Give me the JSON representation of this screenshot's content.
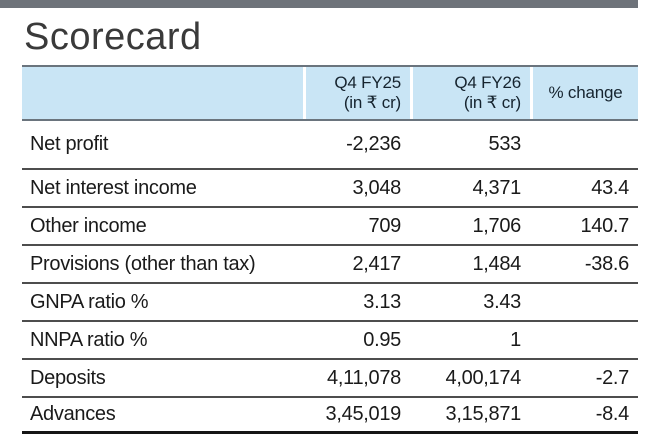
{
  "title": "Scorecard",
  "header": {
    "col_fy25": {
      "line1": "Q4 FY25",
      "line2": "(in ₹ cr)"
    },
    "col_fy26": {
      "line1": "Q4 FY26",
      "line2": "(in ₹ cr)"
    },
    "col_change": {
      "label": "% change"
    }
  },
  "table": {
    "rows": [
      {
        "label": "Net profit",
        "fy25": "-2,236",
        "fy26": "533",
        "change": ""
      },
      {
        "label": "Net interest income",
        "fy25": "3,048",
        "fy26": "4,371",
        "change": "43.4"
      },
      {
        "label": "Other income",
        "fy25": "709",
        "fy26": "1,706",
        "change": "140.7"
      },
      {
        "label": "Provisions (other than tax)",
        "fy25": "2,417",
        "fy26": "1,484",
        "change": "-38.6"
      },
      {
        "label": "GNPA ratio %",
        "fy25": "3.13",
        "fy26": "3.43",
        "change": ""
      },
      {
        "label": "NNPA ratio %",
        "fy25": "0.95",
        "fy26": "1",
        "change": ""
      },
      {
        "label": "Deposits",
        "fy25": "4,11,078",
        "fy26": "4,00,174",
        "change": "-2.7"
      },
      {
        "label": "Advances",
        "fy25": "3,45,019",
        "fy26": "3,15,871",
        "change": "-8.4"
      }
    ]
  },
  "colors": {
    "header_fill": "#c9e5f5",
    "header_border": "#6a747d",
    "row_divider": "#4d4d4d",
    "bottom_rule": "#151515",
    "top_bar": "#6e737a",
    "text": "#1a1a1a"
  },
  "chart_data": {
    "type": "table",
    "title": "Scorecard",
    "columns": [
      "",
      "Q4 FY25 (in ₹ cr)",
      "Q4 FY26 (in ₹ cr)",
      "% change"
    ],
    "rows": [
      [
        "Net profit",
        "-2,236",
        "533",
        ""
      ],
      [
        "Net interest income",
        "3,048",
        "4,371",
        "43.4"
      ],
      [
        "Other income",
        "709",
        "1,706",
        "140.7"
      ],
      [
        "Provisions (other than tax)",
        "2,417",
        "1,484",
        "-38.6"
      ],
      [
        "GNPA ratio %",
        "3.13",
        "3.43",
        ""
      ],
      [
        "NNPA ratio %",
        "0.95",
        "1",
        ""
      ],
      [
        "Deposits",
        "4,11,078",
        "4,00,174",
        "-2.7"
      ],
      [
        "Advances",
        "3,45,019",
        "3,15,871",
        "-8.4"
      ]
    ]
  }
}
